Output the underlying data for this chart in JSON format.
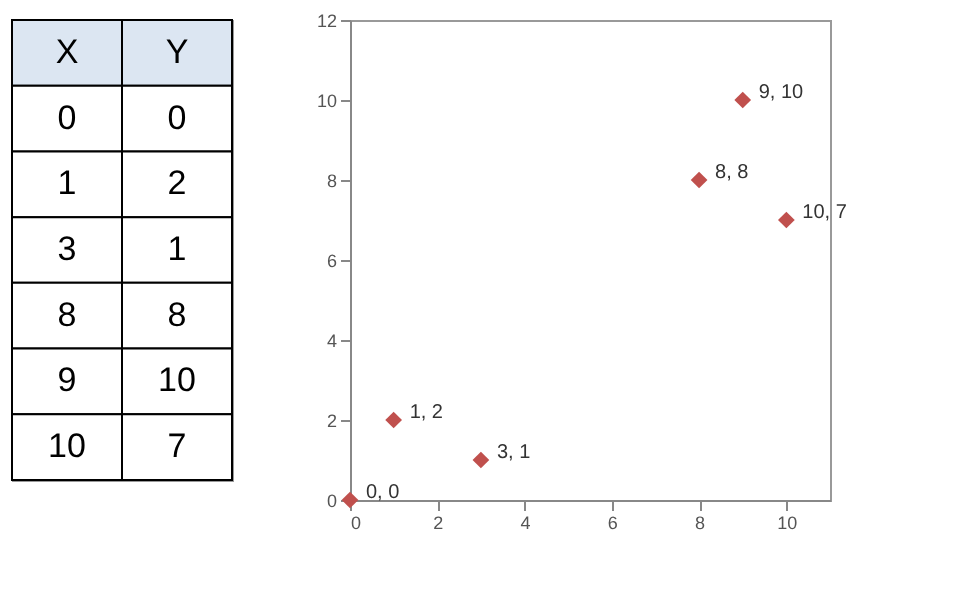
{
  "chart_data": [
    {
      "type": "other",
      "annotations": [
        "X",
        "Y",
        "0",
        "0",
        "1",
        "2",
        "3",
        "1",
        "8",
        "8",
        "9",
        "10",
        "10",
        "7"
      ]
    },
    {
      "type": "scatter",
      "x": [
        0,
        1,
        3,
        8,
        9,
        10
      ],
      "values": [
        0,
        2,
        1,
        8,
        10,
        7
      ],
      "value_labels": [
        "0, 0",
        "1, 2",
        "3, 1",
        "8, 8",
        "9, 10",
        "10, 7"
      ],
      "color": "#c0504d",
      "marker": "diamond",
      "xlim": [
        0,
        11
      ],
      "xticks": [
        0,
        2,
        4,
        6,
        8,
        10
      ],
      "ylim": [
        0,
        12
      ],
      "yticks": [
        0,
        2,
        4,
        6,
        8,
        10,
        12
      ]
    }
  ]
}
